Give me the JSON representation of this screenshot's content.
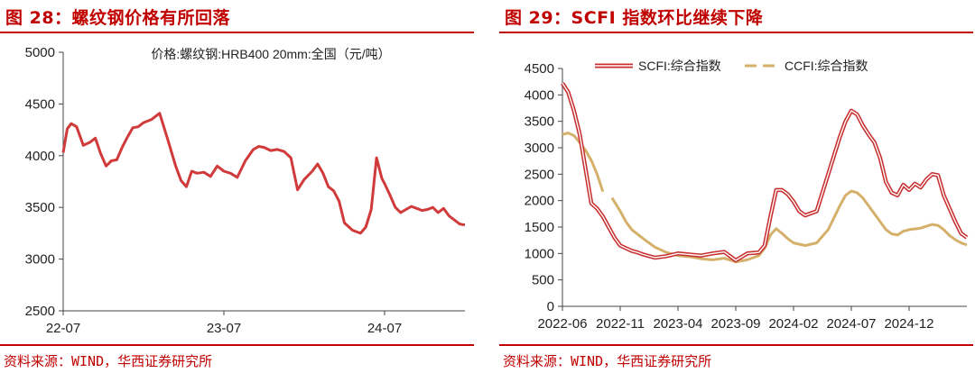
{
  "panels": [
    {
      "title": "图 28：螺纹钢价格有所回落",
      "source": "资料来源：WIND，华西证券研究所"
    },
    {
      "title": "图 29：SCFI 指数环比继续下降",
      "source": "资料来源：WIND，华西证券研究所"
    }
  ],
  "colors": {
    "accent": "#c00000",
    "line_red": "#d03a3a",
    "line_gold": "#d4b06a"
  },
  "chart_data": [
    {
      "type": "line",
      "title": "价格:螺纹钢:HRB400 20mm:全国（元/吨）",
      "xlabel": "",
      "ylabel": "",
      "ylim": [
        2500,
        5000
      ],
      "yticks": [
        "2500",
        "3000",
        "3500",
        "4000",
        "4500",
        "5000"
      ],
      "xtick_labels": [
        "22-07",
        "23-07",
        "24-07"
      ],
      "xlim": [
        0,
        30
      ],
      "xtick_positions": [
        0,
        12,
        24
      ],
      "series": [
        {
          "name": "螺纹钢",
          "x": [
            0,
            0.3,
            0.6,
            1.0,
            1.5,
            2.0,
            2.4,
            2.8,
            3.2,
            3.6,
            4.0,
            4.4,
            4.8,
            5.2,
            5.6,
            6.0,
            6.6,
            7.2,
            7.8,
            8.4,
            8.8,
            9.2,
            9.6,
            10.0,
            10.5,
            11.0,
            11.5,
            12.0,
            12.5,
            13.0,
            13.6,
            14.2,
            14.6,
            15.0,
            15.5,
            16.0,
            16.5,
            17.0,
            17.5,
            18.0,
            18.6,
            19.0,
            19.4,
            19.8,
            20.2,
            20.6,
            21.0,
            21.6,
            22.2,
            22.6,
            23.0,
            23.4,
            23.8,
            24.0,
            24.4,
            24.8,
            25.2,
            25.6,
            26.0,
            26.4,
            26.8,
            27.2,
            27.6,
            28.0,
            28.4,
            28.8,
            29.2,
            29.6,
            30.0
          ],
          "values": [
            4030,
            4260,
            4310,
            4280,
            4100,
            4130,
            4170,
            4020,
            3900,
            3950,
            3960,
            4080,
            4180,
            4270,
            4280,
            4320,
            4350,
            4410,
            4160,
            3900,
            3760,
            3700,
            3850,
            3830,
            3840,
            3800,
            3900,
            3850,
            3830,
            3790,
            3950,
            4060,
            4090,
            4080,
            4050,
            4060,
            4040,
            3980,
            3670,
            3770,
            3850,
            3920,
            3830,
            3700,
            3660,
            3560,
            3350,
            3280,
            3250,
            3310,
            3480,
            3980,
            3780,
            3730,
            3620,
            3500,
            3450,
            3480,
            3510,
            3490,
            3470,
            3480,
            3500,
            3450,
            3490,
            3420,
            3380,
            3340,
            3330
          ]
        }
      ]
    },
    {
      "type": "line",
      "title": "",
      "xlabel": "",
      "ylabel": "",
      "ylim": [
        0,
        4500
      ],
      "yticks": [
        "0",
        "500",
        "1000",
        "1500",
        "2000",
        "2500",
        "3000",
        "3500",
        "4000",
        "4500"
      ],
      "xtick_labels": [
        "2022-06",
        "2022-11",
        "2023-04",
        "2023-09",
        "2024-02",
        "2024-07",
        "2024-12"
      ],
      "xlim": [
        0,
        35
      ],
      "xtick_positions": [
        0,
        5,
        10,
        15,
        20,
        25,
        30
      ],
      "legend_position": "top",
      "series": [
        {
          "name": "SCFI:综合指数",
          "x": [
            0,
            0.5,
            1,
            1.5,
            2,
            2.5,
            3,
            3.5,
            4,
            4.5,
            5,
            5.5,
            6,
            6.5,
            7,
            8,
            9,
            10,
            11,
            12,
            13,
            14,
            15,
            16,
            17,
            17.5,
            18,
            18.5,
            19,
            19.5,
            20,
            20.5,
            21,
            22,
            23,
            24,
            24.5,
            25,
            25.5,
            26,
            26.5,
            27,
            27.5,
            28,
            28.5,
            29,
            29.5,
            30,
            30.5,
            31,
            31.5,
            32,
            32.5,
            33,
            33.5,
            34,
            34.5,
            35
          ],
          "values": [
            4220,
            4050,
            3700,
            3250,
            2600,
            1950,
            1850,
            1700,
            1500,
            1300,
            1150,
            1100,
            1050,
            1020,
            980,
            920,
            950,
            1000,
            980,
            960,
            1000,
            1030,
            870,
            1000,
            1020,
            1150,
            1700,
            2200,
            2200,
            2120,
            1980,
            1800,
            1720,
            1800,
            2500,
            3200,
            3500,
            3700,
            3630,
            3420,
            3250,
            3100,
            2800,
            2350,
            2150,
            2100,
            2300,
            2200,
            2320,
            2250,
            2400,
            2500,
            2480,
            2100,
            1850,
            1600,
            1380,
            1300
          ]
        },
        {
          "name": "CCFI:综合指数",
          "segments": [
            {
              "x": [
                0,
                0.5,
                1,
                1.5,
                2,
                2.5,
                3,
                3.5
              ],
              "values": [
                3250,
                3280,
                3230,
                3100,
                2950,
                2760,
                2500,
                2170
              ]
            },
            {
              "x": [
                4.3,
                5,
                5.5,
                6,
                7,
                8,
                9,
                10,
                11,
                12,
                13,
                14,
                15,
                16,
                17,
                17.5,
                18,
                18.5,
                19,
                19.5,
                20,
                21,
                22,
                23,
                24,
                24.5,
                25,
                25.5,
                26,
                26.5,
                27,
                27.5,
                28,
                28.5,
                29,
                29.5,
                30,
                31,
                32,
                32.5,
                33,
                33.5,
                34,
                34.5,
                35
              ],
              "values": [
                2050,
                1800,
                1600,
                1450,
                1280,
                1120,
                1020,
                960,
                940,
                900,
                880,
                910,
                840,
                880,
                960,
                1100,
                1350,
                1470,
                1380,
                1280,
                1200,
                1150,
                1200,
                1450,
                1900,
                2100,
                2180,
                2150,
                2050,
                1900,
                1750,
                1600,
                1450,
                1370,
                1350,
                1420,
                1450,
                1480,
                1550,
                1530,
                1450,
                1340,
                1260,
                1200,
                1160
              ]
            }
          ]
        }
      ]
    }
  ]
}
